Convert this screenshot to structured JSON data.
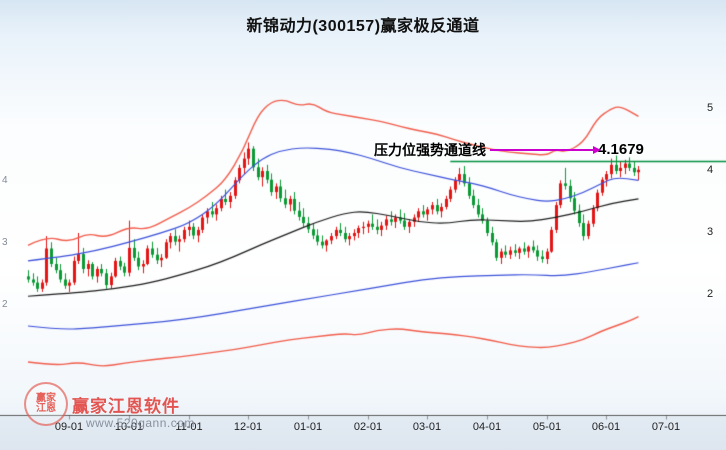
{
  "title": "新锦动力(300157)赢家极反通道",
  "annotation": {
    "label": "压力位强势通道线",
    "value": "4.1679"
  },
  "watermark": {
    "brand": "赢家江恩软件",
    "url": "www.520gann.com",
    "logo_text_top": "赢家",
    "logo_text_bottom": "江恩"
  },
  "colors": {
    "up_candle": "#e31515",
    "down_candle": "#0b9a35",
    "outer_channel": "#f15b4a",
    "inner_channel": "#3a50d9",
    "life_line": "#1a1a1a",
    "pressure_line": "#00913f",
    "arrow": "#cc00cc",
    "axis": "#555555"
  },
  "chart_data": {
    "type": "candlestick",
    "title": "新锦动力(300157)赢家极反通道",
    "x_tick_labels": [
      "09-01",
      "10-01",
      "11-01",
      "12-01",
      "01-01",
      "02-01",
      "03-01",
      "04-01",
      "05-01",
      "06-01",
      "07-01"
    ],
    "x_tick_indices": [
      9,
      22,
      35,
      48,
      61,
      74,
      87,
      100,
      113,
      126,
      139
    ],
    "y_ticks_right": [
      5,
      4,
      3,
      2
    ],
    "y_ticks_left": [
      4,
      3,
      2
    ],
    "ylim": [
      0.1,
      5.8
    ],
    "legend": "off",
    "grid": "off",
    "candles_ohlc": [
      [
        2.3,
        2.4,
        2.2,
        2.25
      ],
      [
        2.25,
        2.35,
        2.15,
        2.2
      ],
      [
        2.2,
        2.3,
        2.05,
        2.1
      ],
      [
        2.1,
        2.25,
        2.05,
        2.2
      ],
      [
        2.2,
        2.95,
        2.15,
        2.75
      ],
      [
        2.75,
        2.85,
        2.45,
        2.5
      ],
      [
        2.5,
        2.6,
        2.35,
        2.4
      ],
      [
        2.4,
        2.5,
        2.2,
        2.25
      ],
      [
        2.25,
        2.35,
        2.1,
        2.15
      ],
      [
        2.15,
        2.25,
        2.05,
        2.2
      ],
      [
        2.2,
        2.62,
        2.16,
        2.55
      ],
      [
        2.55,
        3.0,
        2.5,
        2.66
      ],
      [
        2.66,
        2.76,
        2.35,
        2.42
      ],
      [
        2.42,
        2.56,
        2.3,
        2.5
      ],
      [
        2.5,
        2.53,
        2.25,
        2.3
      ],
      [
        2.3,
        2.46,
        2.2,
        2.42
      ],
      [
        2.42,
        2.5,
        2.3,
        2.35
      ],
      [
        2.35,
        2.42,
        2.1,
        2.16
      ],
      [
        2.16,
        2.36,
        2.1,
        2.3
      ],
      [
        2.3,
        2.6,
        2.28,
        2.55
      ],
      [
        2.55,
        2.62,
        2.4,
        2.46
      ],
      [
        2.46,
        2.52,
        2.3,
        2.36
      ],
      [
        2.36,
        3.2,
        2.3,
        2.76
      ],
      [
        2.76,
        2.9,
        2.55,
        2.6
      ],
      [
        2.6,
        2.7,
        2.4,
        2.46
      ],
      [
        2.46,
        2.56,
        2.35,
        2.5
      ],
      [
        2.5,
        2.8,
        2.48,
        2.75
      ],
      [
        2.75,
        2.86,
        2.6,
        2.65
      ],
      [
        2.65,
        2.76,
        2.5,
        2.56
      ],
      [
        2.56,
        2.66,
        2.45,
        2.6
      ],
      [
        2.6,
        2.9,
        2.58,
        2.85
      ],
      [
        2.85,
        3.0,
        2.75,
        2.95
      ],
      [
        2.95,
        3.06,
        2.8,
        2.86
      ],
      [
        2.86,
        2.96,
        2.7,
        2.9
      ],
      [
        2.9,
        3.1,
        2.85,
        3.05
      ],
      [
        3.05,
        3.2,
        2.95,
        3.1
      ],
      [
        3.1,
        3.16,
        2.9,
        2.96
      ],
      [
        2.96,
        3.1,
        2.85,
        3.05
      ],
      [
        3.05,
        3.3,
        3.0,
        3.25
      ],
      [
        3.25,
        3.4,
        3.15,
        3.35
      ],
      [
        3.35,
        3.5,
        3.25,
        3.3
      ],
      [
        3.3,
        3.46,
        3.2,
        3.4
      ],
      [
        3.4,
        3.6,
        3.35,
        3.55
      ],
      [
        3.55,
        3.7,
        3.45,
        3.5
      ],
      [
        3.5,
        3.66,
        3.4,
        3.6
      ],
      [
        3.6,
        3.9,
        3.55,
        3.85
      ],
      [
        3.85,
        4.1,
        3.8,
        4.05
      ],
      [
        4.05,
        4.3,
        3.95,
        4.2
      ],
      [
        4.2,
        4.46,
        4.1,
        4.36
      ],
      [
        4.36,
        4.4,
        4.0,
        4.06
      ],
      [
        4.06,
        4.2,
        3.85,
        3.9
      ],
      [
        3.9,
        4.06,
        3.75,
        4.0
      ],
      [
        4.0,
        4.1,
        3.8,
        3.86
      ],
      [
        3.86,
        3.96,
        3.6,
        3.66
      ],
      [
        3.66,
        3.8,
        3.55,
        3.75
      ],
      [
        3.75,
        3.86,
        3.5,
        3.56
      ],
      [
        3.56,
        3.7,
        3.4,
        3.46
      ],
      [
        3.46,
        3.6,
        3.35,
        3.55
      ],
      [
        3.55,
        3.66,
        3.3,
        3.36
      ],
      [
        3.36,
        3.5,
        3.2,
        3.26
      ],
      [
        3.26,
        3.4,
        3.1,
        3.16
      ],
      [
        3.16,
        3.26,
        3.0,
        3.06
      ],
      [
        3.06,
        3.16,
        2.9,
        2.96
      ],
      [
        2.96,
        3.06,
        2.8,
        2.86
      ],
      [
        2.86,
        2.96,
        2.75,
        2.8
      ],
      [
        2.8,
        2.9,
        2.7,
        2.88
      ],
      [
        2.88,
        3.0,
        2.82,
        2.95
      ],
      [
        2.95,
        3.1,
        2.9,
        3.05
      ],
      [
        3.05,
        3.16,
        2.95,
        3.0
      ],
      [
        3.0,
        3.1,
        2.85,
        2.9
      ],
      [
        2.9,
        3.0,
        2.8,
        2.95
      ],
      [
        2.95,
        3.06,
        2.88,
        3.0
      ],
      [
        3.0,
        3.12,
        2.92,
        3.08
      ],
      [
        3.08,
        3.18,
        2.98,
        3.1
      ],
      [
        3.1,
        3.2,
        3.0,
        3.15
      ],
      [
        3.15,
        3.3,
        3.05,
        3.1
      ],
      [
        3.1,
        3.22,
        2.98,
        3.05
      ],
      [
        3.05,
        3.18,
        2.95,
        3.12
      ],
      [
        3.12,
        3.28,
        3.05,
        3.22
      ],
      [
        3.22,
        3.35,
        3.12,
        3.18
      ],
      [
        3.18,
        3.3,
        3.08,
        3.25
      ],
      [
        3.25,
        3.38,
        3.15,
        3.2
      ],
      [
        3.2,
        3.32,
        3.05,
        3.1
      ],
      [
        3.1,
        3.22,
        3.0,
        3.18
      ],
      [
        3.18,
        3.3,
        3.1,
        3.25
      ],
      [
        3.25,
        3.4,
        3.18,
        3.35
      ],
      [
        3.35,
        3.45,
        3.25,
        3.3
      ],
      [
        3.3,
        3.42,
        3.2,
        3.38
      ],
      [
        3.38,
        3.5,
        3.3,
        3.45
      ],
      [
        3.45,
        3.55,
        3.3,
        3.35
      ],
      [
        3.35,
        3.48,
        3.25,
        3.42
      ],
      [
        3.42,
        3.6,
        3.38,
        3.55
      ],
      [
        3.55,
        3.75,
        3.5,
        3.7
      ],
      [
        3.7,
        3.9,
        3.65,
        3.85
      ],
      [
        3.85,
        4.05,
        3.78,
        3.95
      ],
      [
        3.95,
        4.08,
        3.75,
        3.8
      ],
      [
        3.8,
        3.9,
        3.55,
        3.6
      ],
      [
        3.6,
        3.7,
        3.4,
        3.45
      ],
      [
        3.45,
        3.55,
        3.25,
        3.3
      ],
      [
        3.3,
        3.4,
        3.15,
        3.2
      ],
      [
        3.2,
        3.25,
        2.95,
        3.0
      ],
      [
        3.0,
        3.1,
        2.8,
        2.85
      ],
      [
        2.85,
        2.9,
        2.55,
        2.6
      ],
      [
        2.6,
        2.75,
        2.5,
        2.7
      ],
      [
        2.7,
        2.8,
        2.6,
        2.65
      ],
      [
        2.65,
        2.78,
        2.58,
        2.72
      ],
      [
        2.72,
        2.82,
        2.62,
        2.68
      ],
      [
        2.68,
        2.78,
        2.58,
        2.75
      ],
      [
        2.75,
        2.85,
        2.65,
        2.7
      ],
      [
        2.7,
        2.8,
        2.6,
        2.78
      ],
      [
        2.78,
        2.88,
        2.68,
        2.72
      ],
      [
        2.72,
        2.8,
        2.55,
        2.62
      ],
      [
        2.62,
        2.72,
        2.52,
        2.58
      ],
      [
        2.58,
        2.75,
        2.5,
        2.7
      ],
      [
        2.7,
        3.1,
        2.68,
        3.05
      ],
      [
        3.05,
        3.5,
        3.0,
        3.45
      ],
      [
        3.45,
        3.85,
        3.4,
        3.8
      ],
      [
        3.8,
        4.05,
        3.7,
        3.76
      ],
      [
        3.76,
        3.86,
        3.5,
        3.56
      ],
      [
        3.56,
        3.66,
        3.3,
        3.36
      ],
      [
        3.36,
        3.46,
        3.1,
        3.16
      ],
      [
        3.16,
        3.3,
        2.88,
        2.95
      ],
      [
        2.95,
        3.2,
        2.9,
        3.15
      ],
      [
        3.15,
        3.45,
        3.1,
        3.4
      ],
      [
        3.4,
        3.7,
        3.35,
        3.65
      ],
      [
        3.65,
        3.9,
        3.6,
        3.86
      ],
      [
        3.86,
        4.0,
        3.75,
        3.95
      ],
      [
        3.95,
        4.2,
        3.88,
        4.1
      ],
      [
        4.1,
        4.25,
        3.95,
        4.0
      ],
      [
        4.0,
        4.15,
        3.9,
        4.05
      ],
      [
        4.05,
        4.18,
        3.95,
        4.12
      ],
      [
        4.12,
        4.22,
        4.0,
        4.05
      ],
      [
        4.05,
        4.15,
        3.92,
        3.98
      ],
      [
        3.98,
        4.08,
        3.85,
        4.02
      ]
    ],
    "lines": [
      {
        "name": "upper-outer-red",
        "color": "#f15b4a",
        "width": 1.4,
        "points": [
          [
            0,
            2.8
          ],
          [
            4,
            2.95
          ],
          [
            9,
            2.85
          ],
          [
            13,
            3.0
          ],
          [
            17,
            2.92
          ],
          [
            22,
            3.1
          ],
          [
            26,
            3.05
          ],
          [
            31,
            3.25
          ],
          [
            35,
            3.4
          ],
          [
            39,
            3.6
          ],
          [
            43,
            3.85
          ],
          [
            47,
            4.35
          ],
          [
            50,
            4.9
          ],
          [
            53,
            5.12
          ],
          [
            56,
            5.15
          ],
          [
            59,
            5.05
          ],
          [
            62,
            5.1
          ],
          [
            65,
            4.95
          ],
          [
            69,
            4.9
          ],
          [
            73,
            4.85
          ],
          [
            77,
            4.8
          ],
          [
            81,
            4.72
          ],
          [
            85,
            4.65
          ],
          [
            89,
            4.6
          ],
          [
            93,
            4.5
          ],
          [
            97,
            4.42
          ],
          [
            101,
            4.35
          ],
          [
            105,
            4.3
          ],
          [
            109,
            4.28
          ],
          [
            113,
            4.25
          ],
          [
            115,
            4.35
          ],
          [
            117,
            4.3
          ],
          [
            121,
            4.45
          ],
          [
            124,
            4.85
          ],
          [
            127,
            5.0
          ],
          [
            129,
            5.05
          ],
          [
            133,
            4.88
          ]
        ]
      },
      {
        "name": "upper-inner-blue",
        "color": "#3a50d9",
        "width": 1.2,
        "points": [
          [
            0,
            2.55
          ],
          [
            8,
            2.62
          ],
          [
            15,
            2.72
          ],
          [
            22,
            2.85
          ],
          [
            29,
            3.0
          ],
          [
            35,
            3.15
          ],
          [
            41,
            3.45
          ],
          [
            47,
            3.95
          ],
          [
            51,
            4.2
          ],
          [
            55,
            4.33
          ],
          [
            60,
            4.38
          ],
          [
            66,
            4.35
          ],
          [
            70,
            4.3
          ],
          [
            75,
            4.2
          ],
          [
            81,
            4.05
          ],
          [
            87,
            3.95
          ],
          [
            93,
            3.85
          ],
          [
            97,
            3.8
          ],
          [
            101,
            3.72
          ],
          [
            105,
            3.62
          ],
          [
            109,
            3.55
          ],
          [
            113,
            3.5
          ],
          [
            117,
            3.55
          ],
          [
            121,
            3.65
          ],
          [
            125,
            3.8
          ],
          [
            128,
            3.9
          ],
          [
            133,
            3.85
          ]
        ]
      },
      {
        "name": "life-line-black",
        "color": "#1a1a1a",
        "width": 1.2,
        "points": [
          [
            0,
            1.98
          ],
          [
            10,
            2.03
          ],
          [
            19,
            2.1
          ],
          [
            27,
            2.2
          ],
          [
            33,
            2.32
          ],
          [
            39,
            2.45
          ],
          [
            45,
            2.62
          ],
          [
            51,
            2.82
          ],
          [
            57,
            3.0
          ],
          [
            63,
            3.18
          ],
          [
            69,
            3.32
          ],
          [
            73,
            3.35
          ],
          [
            79,
            3.28
          ],
          [
            85,
            3.18
          ],
          [
            91,
            3.15
          ],
          [
            97,
            3.22
          ],
          [
            103,
            3.2
          ],
          [
            109,
            3.18
          ],
          [
            115,
            3.25
          ],
          [
            121,
            3.35
          ],
          [
            127,
            3.48
          ],
          [
            133,
            3.55
          ]
        ]
      },
      {
        "name": "lower-inner-blue",
        "color": "#3a50d9",
        "width": 1.2,
        "points": [
          [
            0,
            1.5
          ],
          [
            7,
            1.44
          ],
          [
            14,
            1.47
          ],
          [
            22,
            1.52
          ],
          [
            30,
            1.57
          ],
          [
            38,
            1.65
          ],
          [
            46,
            1.75
          ],
          [
            54,
            1.85
          ],
          [
            62,
            1.95
          ],
          [
            70,
            2.05
          ],
          [
            78,
            2.15
          ],
          [
            86,
            2.25
          ],
          [
            94,
            2.3
          ],
          [
            102,
            2.32
          ],
          [
            110,
            2.33
          ],
          [
            116,
            2.3
          ],
          [
            123,
            2.38
          ],
          [
            128,
            2.45
          ],
          [
            133,
            2.52
          ]
        ]
      },
      {
        "name": "lower-outer-red",
        "color": "#f15b4a",
        "width": 1.4,
        "points": [
          [
            0,
            0.92
          ],
          [
            6,
            0.86
          ],
          [
            11,
            0.92
          ],
          [
            16,
            0.84
          ],
          [
            21,
            0.9
          ],
          [
            27,
            0.96
          ],
          [
            33,
            1.0
          ],
          [
            39,
            1.06
          ],
          [
            45,
            1.12
          ],
          [
            51,
            1.2
          ],
          [
            57,
            1.28
          ],
          [
            63,
            1.33
          ],
          [
            69,
            1.38
          ],
          [
            72,
            1.35
          ],
          [
            76,
            1.43
          ],
          [
            81,
            1.46
          ],
          [
            85,
            1.41
          ],
          [
            89,
            1.39
          ],
          [
            93,
            1.36
          ],
          [
            97,
            1.32
          ],
          [
            101,
            1.27
          ],
          [
            105,
            1.2
          ],
          [
            109,
            1.16
          ],
          [
            113,
            1.15
          ],
          [
            117,
            1.2
          ],
          [
            121,
            1.28
          ],
          [
            125,
            1.42
          ],
          [
            128,
            1.5
          ],
          [
            131,
            1.58
          ],
          [
            133,
            1.65
          ]
        ]
      }
    ],
    "pressure_line": {
      "level": 4.1679,
      "start_index": 92,
      "color": "#00913f"
    }
  }
}
